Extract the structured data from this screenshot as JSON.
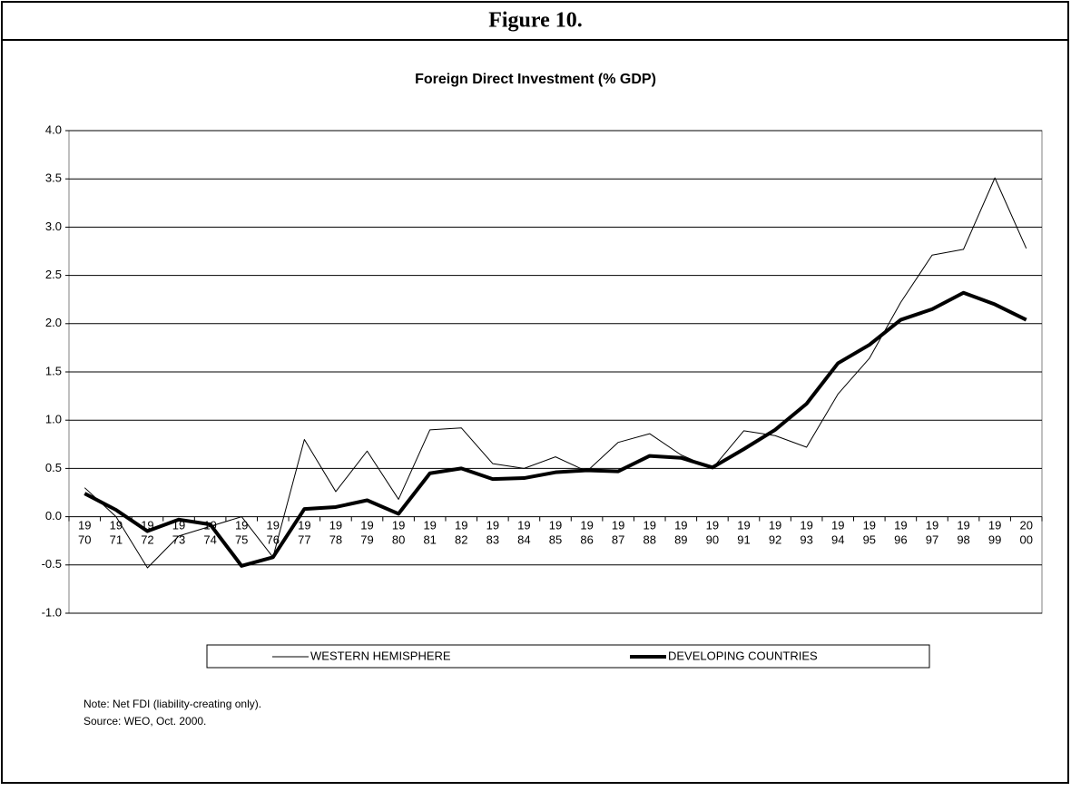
{
  "figure_label": "Figure 10.",
  "chart_data": {
    "type": "line",
    "title": "Foreign Direct Investment (% GDP)",
    "categories": [
      "1970",
      "1971",
      "1972",
      "1973",
      "1974",
      "1975",
      "1976",
      "1977",
      "1978",
      "1979",
      "1980",
      "1981",
      "1982",
      "1983",
      "1984",
      "1985",
      "1986",
      "1987",
      "1988",
      "1989",
      "1990",
      "1991",
      "1992",
      "1993",
      "1994",
      "1995",
      "1996",
      "1997",
      "1998",
      "1999",
      "2000"
    ],
    "series": [
      {
        "name": "WESTERN HEMISPHERE",
        "color": "#000000",
        "width": 1,
        "values": [
          0.3,
          0.0,
          -0.53,
          -0.2,
          -0.1,
          0.0,
          -0.42,
          0.8,
          0.26,
          0.68,
          0.18,
          0.9,
          0.92,
          0.55,
          0.5,
          0.62,
          0.47,
          0.77,
          0.86,
          0.64,
          0.5,
          0.89,
          0.84,
          0.72,
          1.27,
          1.64,
          2.22,
          2.71,
          2.77,
          3.51,
          2.78
        ]
      },
      {
        "name": "DEVELOPING COUNTRIES",
        "color": "#000000",
        "width": 4,
        "values": [
          0.24,
          0.07,
          -0.15,
          -0.03,
          -0.08,
          -0.51,
          -0.42,
          0.08,
          0.1,
          0.17,
          0.03,
          0.45,
          0.5,
          0.39,
          0.4,
          0.46,
          0.48,
          0.47,
          0.63,
          0.61,
          0.51,
          0.7,
          0.9,
          1.17,
          1.59,
          1.78,
          2.04,
          2.15,
          2.32,
          2.2,
          2.04
        ]
      }
    ],
    "ylim": [
      -1,
      4
    ],
    "yticks": [
      {
        "value": -1,
        "label": "-1.0"
      },
      {
        "value": -0.5,
        "label": "-0.5"
      },
      {
        "value": 0,
        "label": "0.0"
      },
      {
        "value": 0.5,
        "label": "0.5"
      },
      {
        "value": 1,
        "label": "1.0"
      },
      {
        "value": 1.5,
        "label": "1.5"
      },
      {
        "value": 2,
        "label": "2.0"
      },
      {
        "value": 2.5,
        "label": "2.5"
      },
      {
        "value": 3,
        "label": "3.0"
      },
      {
        "value": 3.5,
        "label": "3.5"
      },
      {
        "value": 4,
        "label": "4.0"
      }
    ],
    "grid": true,
    "legend": "bottom",
    "notes": [
      "Note: Net FDI (liability-creating only).",
      "Source: WEO, Oct. 2000."
    ]
  }
}
